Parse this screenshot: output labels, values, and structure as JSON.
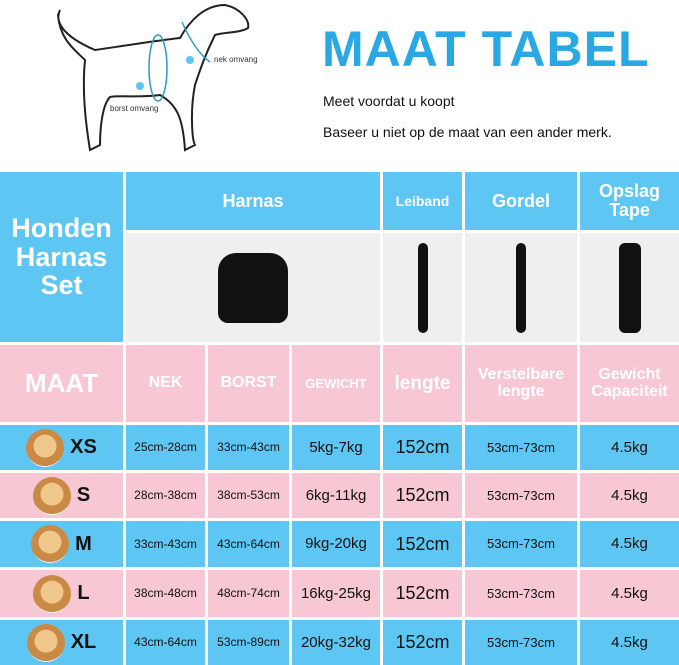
{
  "diagram": {
    "neck_label": "nek omvang",
    "chest_label": "borst omvang",
    "marker_a": "A",
    "marker_b": "B"
  },
  "header": {
    "title": "MAAT TABEL",
    "line1": "Meet voordat u koopt",
    "line2": "Baseer u niet op de maat van een ander merk."
  },
  "table": {
    "set_label": "Honden Harnas Set",
    "products": [
      "Harnas",
      "Leiband",
      "Gordel",
      "Opslag Tape"
    ],
    "columns": [
      "MAAT",
      "NEK",
      "BORST",
      "GEWICHT",
      "lengte",
      "Verstelbare lengte",
      "Gewicht Capaciteit"
    ],
    "rows": [
      [
        "XS",
        "25cm-28cm",
        "33cm-43cm",
        "5kg-7kg",
        "152cm",
        "53cm-73cm",
        "4.5kg"
      ],
      [
        "S",
        "28cm-38cm",
        "38cm-53cm",
        "6kg-11kg",
        "152cm",
        "53cm-73cm",
        "4.5kg"
      ],
      [
        "M",
        "33cm-43cm",
        "43cm-64cm",
        "9kg-20kg",
        "152cm",
        "53cm-73cm",
        "4.5kg"
      ],
      [
        "L",
        "38cm-48cm",
        "48cm-74cm",
        "16kg-25kg",
        "152cm",
        "53cm-73cm",
        "4.5kg"
      ],
      [
        "XL",
        "43cm-64cm",
        "53cm-89cm",
        "20kg-32kg",
        "152cm",
        "53cm-73cm",
        "4.5kg"
      ]
    ]
  },
  "colors": {
    "blue": "#5ec6f3",
    "pink": "#f7c8d3",
    "title": "#29a8e4"
  }
}
